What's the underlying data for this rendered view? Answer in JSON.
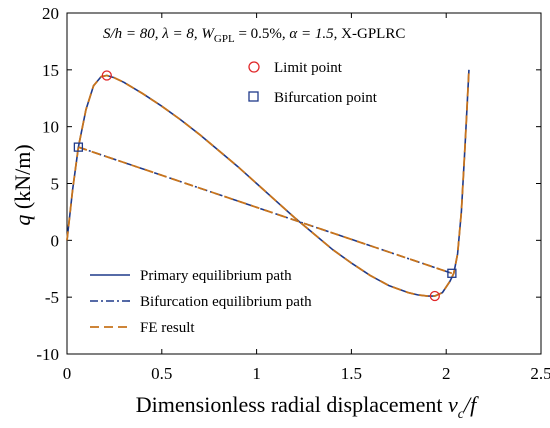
{
  "chart_data": {
    "type": "line",
    "annotation": {
      "S_h": "S/h = 80",
      "lambda": "λ = 8",
      "wgpl": "W",
      "wgpl_sub": "GPL",
      "wgpl_val": " = 0.5%",
      "alpha": "α = 1.5",
      "type": "X-GPLRC"
    },
    "xlabel": {
      "main": "Dimensionless radial displacement ",
      "var": "v",
      "sub": "c",
      "tail": "/f"
    },
    "ylabel": {
      "var": "q",
      "unit": " (kN/m)"
    },
    "xlim": [
      0,
      2.5
    ],
    "ylim": [
      -10,
      20
    ],
    "xticks": [
      0,
      0.5,
      1,
      1.5,
      2,
      2.5
    ],
    "yticks": [
      -10,
      -5,
      0,
      5,
      10,
      15,
      20
    ],
    "xtick_labels": [
      "0",
      "0.5",
      "1",
      "1.5",
      "2",
      "2.5"
    ],
    "ytick_labels": [
      "-10",
      "-5",
      "0",
      "5",
      "10",
      "15",
      "20"
    ],
    "legend_placement": "bottom-left",
    "markers_legend_placement": "top-center",
    "series": [
      {
        "name": "Primary equilibrium path",
        "style": "solid",
        "color": "#1f3a8a",
        "x": [
          0,
          0.03,
          0.06,
          0.1,
          0.14,
          0.18,
          0.21,
          0.25,
          0.3,
          0.4,
          0.5,
          0.6,
          0.7,
          0.8,
          0.9,
          1.0,
          1.1,
          1.2,
          1.3,
          1.4,
          1.5,
          1.6,
          1.7,
          1.8,
          1.85,
          1.9,
          1.94,
          1.98,
          2.02,
          2.04,
          2.06,
          2.08,
          2.1,
          2.12
        ],
        "y": [
          0,
          4.5,
          8.2,
          11.5,
          13.6,
          14.4,
          14.5,
          14.3,
          13.9,
          12.9,
          11.8,
          10.6,
          9.3,
          7.9,
          6.5,
          5.0,
          3.5,
          2.0,
          0.6,
          -0.8,
          -2.0,
          -3.1,
          -4.0,
          -4.6,
          -4.8,
          -4.9,
          -4.9,
          -4.6,
          -3.6,
          -2.9,
          -1.2,
          2.5,
          8.5,
          15.0
        ]
      },
      {
        "name": "Bifurcation equilibrium path",
        "style": "dashdot",
        "color": "#1f3a8a",
        "x": [
          0.06,
          2.03
        ],
        "y": [
          8.2,
          -2.9
        ]
      },
      {
        "name": "FE result",
        "style": "dashed",
        "color": "#c8741c",
        "x": [
          0,
          0.03,
          0.06,
          0.1,
          0.14,
          0.18,
          0.21,
          0.25,
          0.3,
          0.4,
          0.5,
          0.6,
          0.7,
          0.8,
          0.9,
          1.0,
          1.1,
          1.2,
          1.3,
          1.4,
          1.5,
          1.6,
          1.7,
          1.8,
          1.85,
          1.9,
          1.94,
          1.98,
          2.02,
          2.04,
          2.06,
          2.08,
          2.1,
          2.12
        ],
        "y": [
          0,
          4.5,
          8.2,
          11.5,
          13.6,
          14.4,
          14.5,
          14.3,
          13.9,
          12.9,
          11.8,
          10.6,
          9.3,
          7.9,
          6.5,
          5.0,
          3.5,
          2.0,
          0.6,
          -0.8,
          -2.0,
          -3.1,
          -4.0,
          -4.6,
          -4.8,
          -4.9,
          -4.9,
          -4.6,
          -3.6,
          -2.9,
          -1.2,
          2.5,
          8.5,
          15.0
        ],
        "x2": [
          0.06,
          2.03
        ],
        "y2": [
          8.2,
          -2.9
        ]
      }
    ],
    "markers": [
      {
        "name": "Limit point",
        "shape": "circle",
        "color": "#e0282a",
        "points": [
          [
            0.21,
            14.5
          ],
          [
            1.94,
            -4.9
          ]
        ]
      },
      {
        "name": "Bifurcation point",
        "shape": "square",
        "color": "#1f3a8a",
        "points": [
          [
            0.06,
            8.2
          ],
          [
            2.03,
            -2.9
          ]
        ]
      }
    ]
  }
}
